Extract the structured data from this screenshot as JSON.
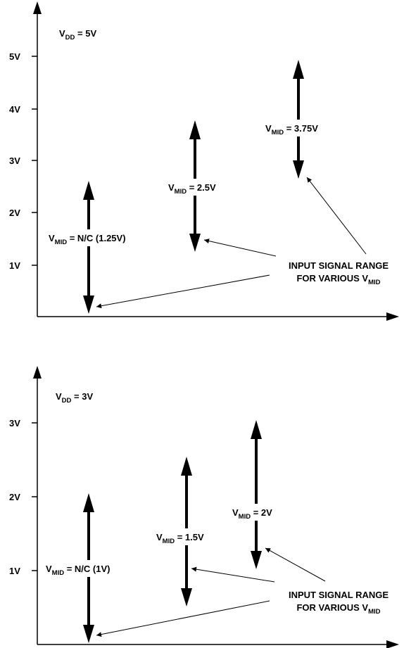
{
  "colors": {
    "ink": "#000000",
    "background": "#ffffff"
  },
  "diagrams": [
    {
      "supply_label": {
        "main": "V",
        "sub": "DD",
        "suffix": " = 5V"
      },
      "y_ticks": [
        "1V",
        "2V",
        "3V",
        "4V",
        "5V"
      ],
      "ranges": [
        {
          "from": 0,
          "to": 2.5,
          "label": {
            "main": "V",
            "sub": "MID",
            "suffix": " = N/C (1.25V)"
          }
        },
        {
          "from": 1.25,
          "to": 3.75,
          "label": {
            "main": "V",
            "sub": "MID",
            "suffix": " = 2.5V"
          }
        },
        {
          "from": 2.5,
          "to": 5,
          "label": {
            "main": "V",
            "sub": "MID",
            "suffix": " = 3.75V"
          }
        }
      ],
      "callout": {
        "line1": "INPUT SIGNAL RANGE",
        "line2_main": "FOR VARIOUS V",
        "line2_sub": "MID"
      }
    },
    {
      "supply_label": {
        "main": "V",
        "sub": "DD",
        "suffix": " = 3V"
      },
      "y_ticks": [
        "1V",
        "2V",
        "3V"
      ],
      "ranges": [
        {
          "from": 0,
          "to": 2,
          "label": {
            "main": "V",
            "sub": "MID",
            "suffix": " = N/C (1V)"
          }
        },
        {
          "from": 0.5,
          "to": 2.5,
          "label": {
            "main": "V",
            "sub": "MID",
            "suffix": " = 1.5V"
          }
        },
        {
          "from": 1,
          "to": 3,
          "label": {
            "main": "V",
            "sub": "MID",
            "suffix": " = 2V"
          }
        }
      ],
      "callout": {
        "line1": "INPUT SIGNAL RANGE",
        "line2_main": "FOR VARIOUS V",
        "line2_sub": "MID"
      }
    }
  ]
}
